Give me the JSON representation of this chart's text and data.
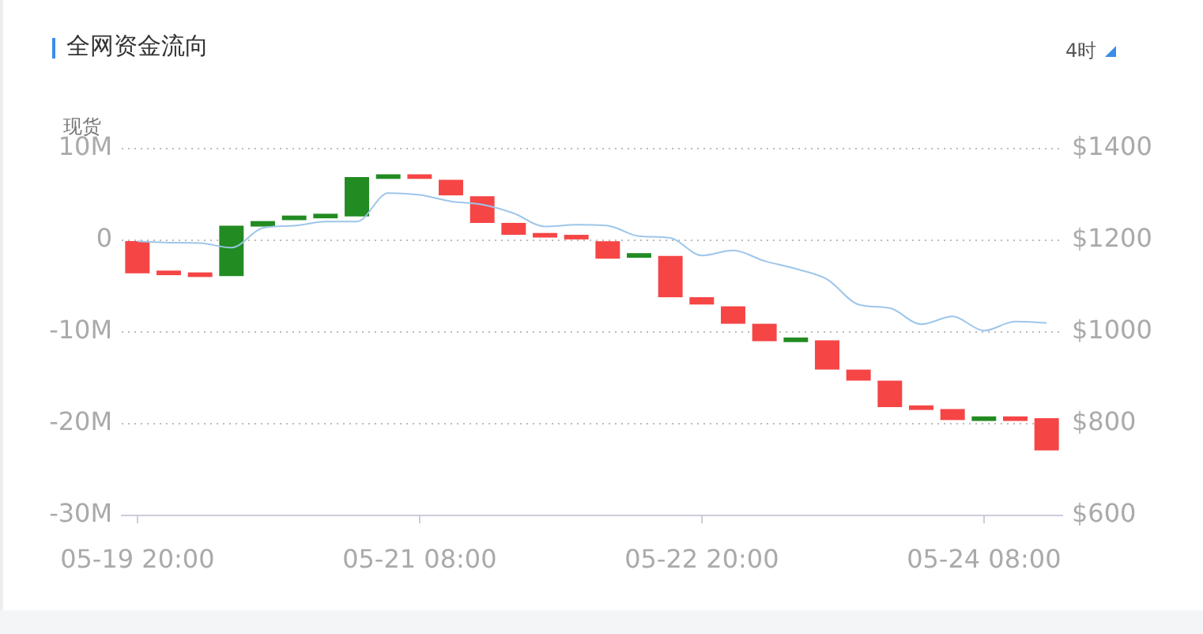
{
  "chart_data": {
    "type": "bar",
    "title": "全网资金流向",
    "annotations": [
      "现货",
      "4时"
    ],
    "categories": [
      "05-19 20:00",
      null,
      null,
      null,
      null,
      null,
      null,
      null,
      null,
      "05-21 08:00",
      null,
      null,
      null,
      null,
      null,
      null,
      null,
      null,
      "05-22 20:00",
      null,
      null,
      null,
      null,
      null,
      null,
      null,
      null,
      "05-24 08:00",
      null,
      null
    ],
    "series": [
      {
        "base": [
          0,
          -3.3,
          -3.5,
          -3.9,
          1.5,
          2.2,
          2.4,
          2.6,
          6.7,
          7.2,
          6.6,
          4.8,
          1.9,
          0.8,
          0.6,
          -0.1,
          -1.9,
          -1.7,
          -6.2,
          -7.2,
          -9.1,
          -11.1,
          -10.9,
          -14.1,
          -15.3,
          -18.0,
          -18.4,
          -19.7,
          -19.2,
          -19.4
        ],
        "values": [
          -3.6,
          -0.5,
          -0.5,
          5.5,
          0.6,
          0.5,
          0.5,
          4.3,
          0.5,
          -0.5,
          -1.7,
          -2.9,
          -1.3,
          -0.5,
          -0.5,
          -1.9,
          0.5,
          -4.5,
          -0.8,
          -1.9,
          -1.9,
          0.5,
          -3.2,
          -1.2,
          -2.9,
          -0.5,
          -1.2,
          0.5,
          -0.5,
          -3.5
        ],
        "colors": [
          "#f54545",
          "#f54545",
          "#f54545",
          "#228b22",
          "#228b22",
          "#228b22",
          "#228b22",
          "#228b22",
          "#228b22",
          "#f54545",
          "#f54545",
          "#f54545",
          "#f54545",
          "#f54545",
          "#f54545",
          "#f54545",
          "#228b22",
          "#f54545",
          "#f54545",
          "#f54545",
          "#f54545",
          "#228b22",
          "#f54545",
          "#f54545",
          "#f54545",
          "#f54545",
          "#f54545",
          "#228b22",
          "#f54545",
          "#f54545"
        ]
      },
      {
        "type": "line",
        "axis": "y2",
        "color": "#9dc6ea",
        "values": [
          1198,
          1195,
          1194,
          1184,
          1227,
          1232,
          1241,
          1241,
          1303,
          1299,
          1285,
          1278,
          1259,
          1230,
          1234,
          1232,
          1209,
          1205,
          1167,
          1178,
          1155,
          1138,
          1115,
          1060,
          1052,
          1017,
          1034,
          1003,
          1023,
          1020
        ]
      }
    ],
    "ylim": [
      -30,
      10
    ],
    "yticks": [
      {
        "value": -30,
        "label": "-30M"
      },
      {
        "value": -20,
        "label": "-20M"
      },
      {
        "value": -10,
        "label": "-10M"
      },
      0,
      {
        "value": 10,
        "label": "10M"
      }
    ],
    "y2lim": [
      600,
      1400
    ],
    "y2ticks": [
      {
        "value": 600,
        "label": "$600"
      },
      {
        "value": 800,
        "label": "$800"
      },
      {
        "value": 1000,
        "label": "$1000"
      },
      {
        "value": 1200,
        "label": "$1200"
      },
      {
        "value": 1400,
        "label": "$1400"
      }
    ],
    "grid": "y",
    "marker": "none"
  }
}
